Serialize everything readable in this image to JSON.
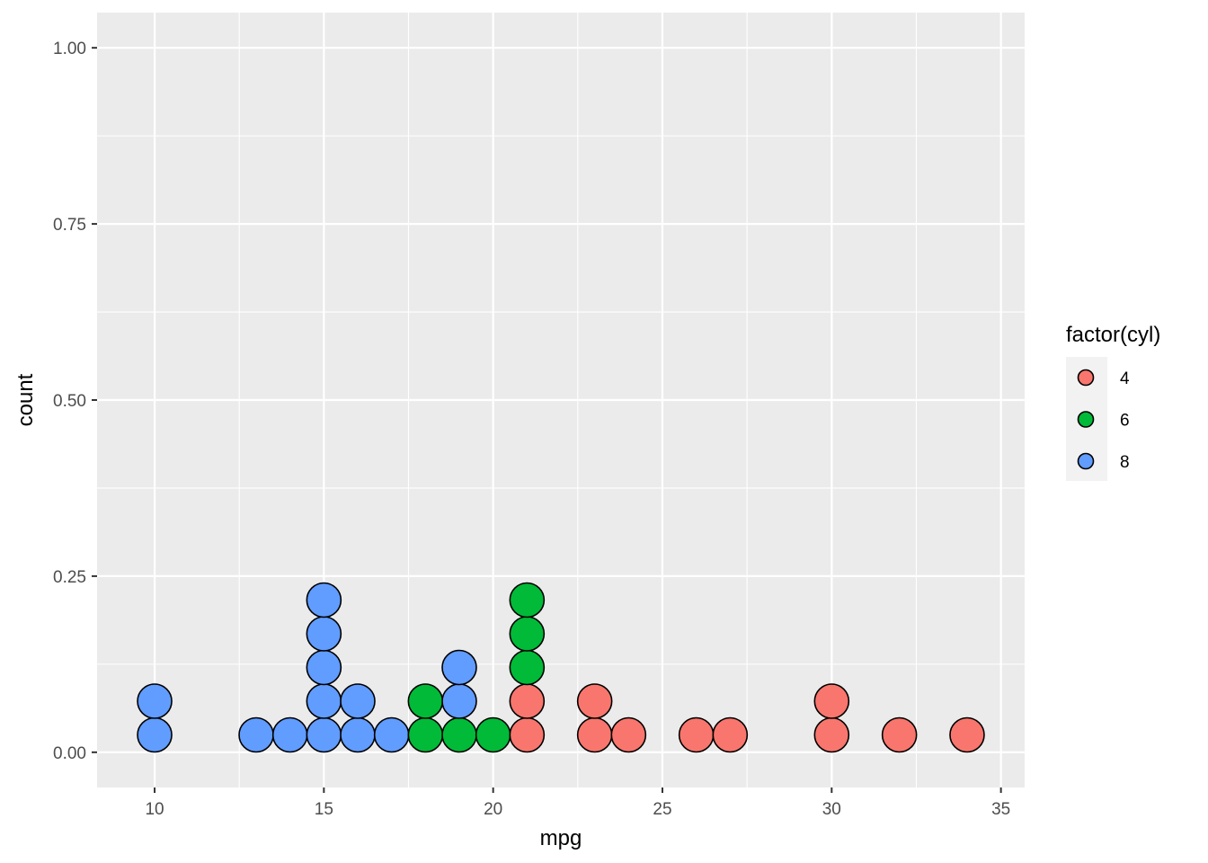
{
  "chart_data": {
    "type": "dotplot",
    "xlabel": "mpg",
    "ylabel": "count",
    "xlim": [
      8.3,
      35.7
    ],
    "ylim": [
      -0.05,
      1.05
    ],
    "x_ticks": [
      10,
      15,
      20,
      25,
      30,
      35
    ],
    "x_tick_labels": [
      "10",
      "15",
      "20",
      "25",
      "30",
      "35"
    ],
    "y_ticks": [
      0,
      0.25,
      0.5,
      0.75,
      1
    ],
    "y_tick_labels": [
      "0.00",
      "0.25",
      "0.50",
      "0.75",
      "1.00"
    ],
    "grid": true,
    "legend": {
      "title": "factor(cyl)",
      "position": "right",
      "entries": [
        {
          "label": "4",
          "color": "#F8766D"
        },
        {
          "label": "6",
          "color": "#00BA38"
        },
        {
          "label": "8",
          "color": "#619CFF"
        }
      ]
    },
    "dot_stacks": [
      {
        "x": 10,
        "groups": [
          "8",
          "8"
        ]
      },
      {
        "x": 13,
        "groups": [
          "8"
        ]
      },
      {
        "x": 14,
        "groups": [
          "8"
        ]
      },
      {
        "x": 15,
        "groups": [
          "8",
          "8",
          "8",
          "8",
          "8"
        ]
      },
      {
        "x": 16,
        "groups": [
          "8",
          "8"
        ]
      },
      {
        "x": 17,
        "groups": [
          "8"
        ]
      },
      {
        "x": 18,
        "groups": [
          "6",
          "6"
        ]
      },
      {
        "x": 19,
        "groups": [
          "6",
          "8",
          "8"
        ]
      },
      {
        "x": 20,
        "groups": [
          "6"
        ]
      },
      {
        "x": 21,
        "groups": [
          "4",
          "4",
          "6",
          "6",
          "6"
        ]
      },
      {
        "x": 23,
        "groups": [
          "4",
          "4"
        ]
      },
      {
        "x": 24,
        "groups": [
          "4"
        ]
      },
      {
        "x": 26,
        "groups": [
          "4"
        ]
      },
      {
        "x": 27,
        "groups": [
          "4"
        ]
      },
      {
        "x": 30,
        "groups": [
          "4",
          "4"
        ]
      },
      {
        "x": 32,
        "groups": [
          "4"
        ]
      },
      {
        "x": 34,
        "groups": [
          "4"
        ]
      }
    ]
  }
}
